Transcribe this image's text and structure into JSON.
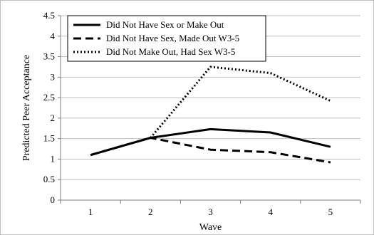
{
  "chart_data": {
    "type": "line",
    "x": [
      1,
      2,
      3,
      4,
      5
    ],
    "xlabel": "Wave",
    "ylabel": "Predicted Peer Acceptance",
    "ylim": [
      0,
      4.5
    ],
    "yticks": [
      0,
      0.5,
      1,
      1.5,
      2,
      2.5,
      3,
      3.5,
      4,
      4.5
    ],
    "ytick_labels": [
      "0",
      "0.5",
      "1",
      "1.5",
      "2",
      "2.5",
      "3",
      "3.5",
      "4",
      "4.5"
    ],
    "xtick_labels": [
      "1",
      "2",
      "3",
      "4",
      "5"
    ],
    "grid": "horizontal",
    "legend_position": "top-left",
    "series": [
      {
        "name": "Did Not Have Sex or Make Out",
        "style": "solid",
        "color": "#000000",
        "x": [
          1,
          2,
          3,
          4,
          5
        ],
        "values": [
          1.1,
          1.52,
          1.73,
          1.65,
          1.3
        ]
      },
      {
        "name": "Did Not Have Sex, Made Out W3-5",
        "style": "dashed",
        "color": "#000000",
        "x": [
          1,
          2,
          3,
          4,
          5
        ],
        "values": [
          1.1,
          1.52,
          1.23,
          1.17,
          0.92
        ]
      },
      {
        "name": "Did Not Make Out, Had Sex W3-5",
        "style": "dotted",
        "color": "#000000",
        "x": [
          2,
          3,
          4,
          5
        ],
        "values": [
          1.52,
          3.25,
          3.1,
          2.42
        ]
      }
    ]
  }
}
